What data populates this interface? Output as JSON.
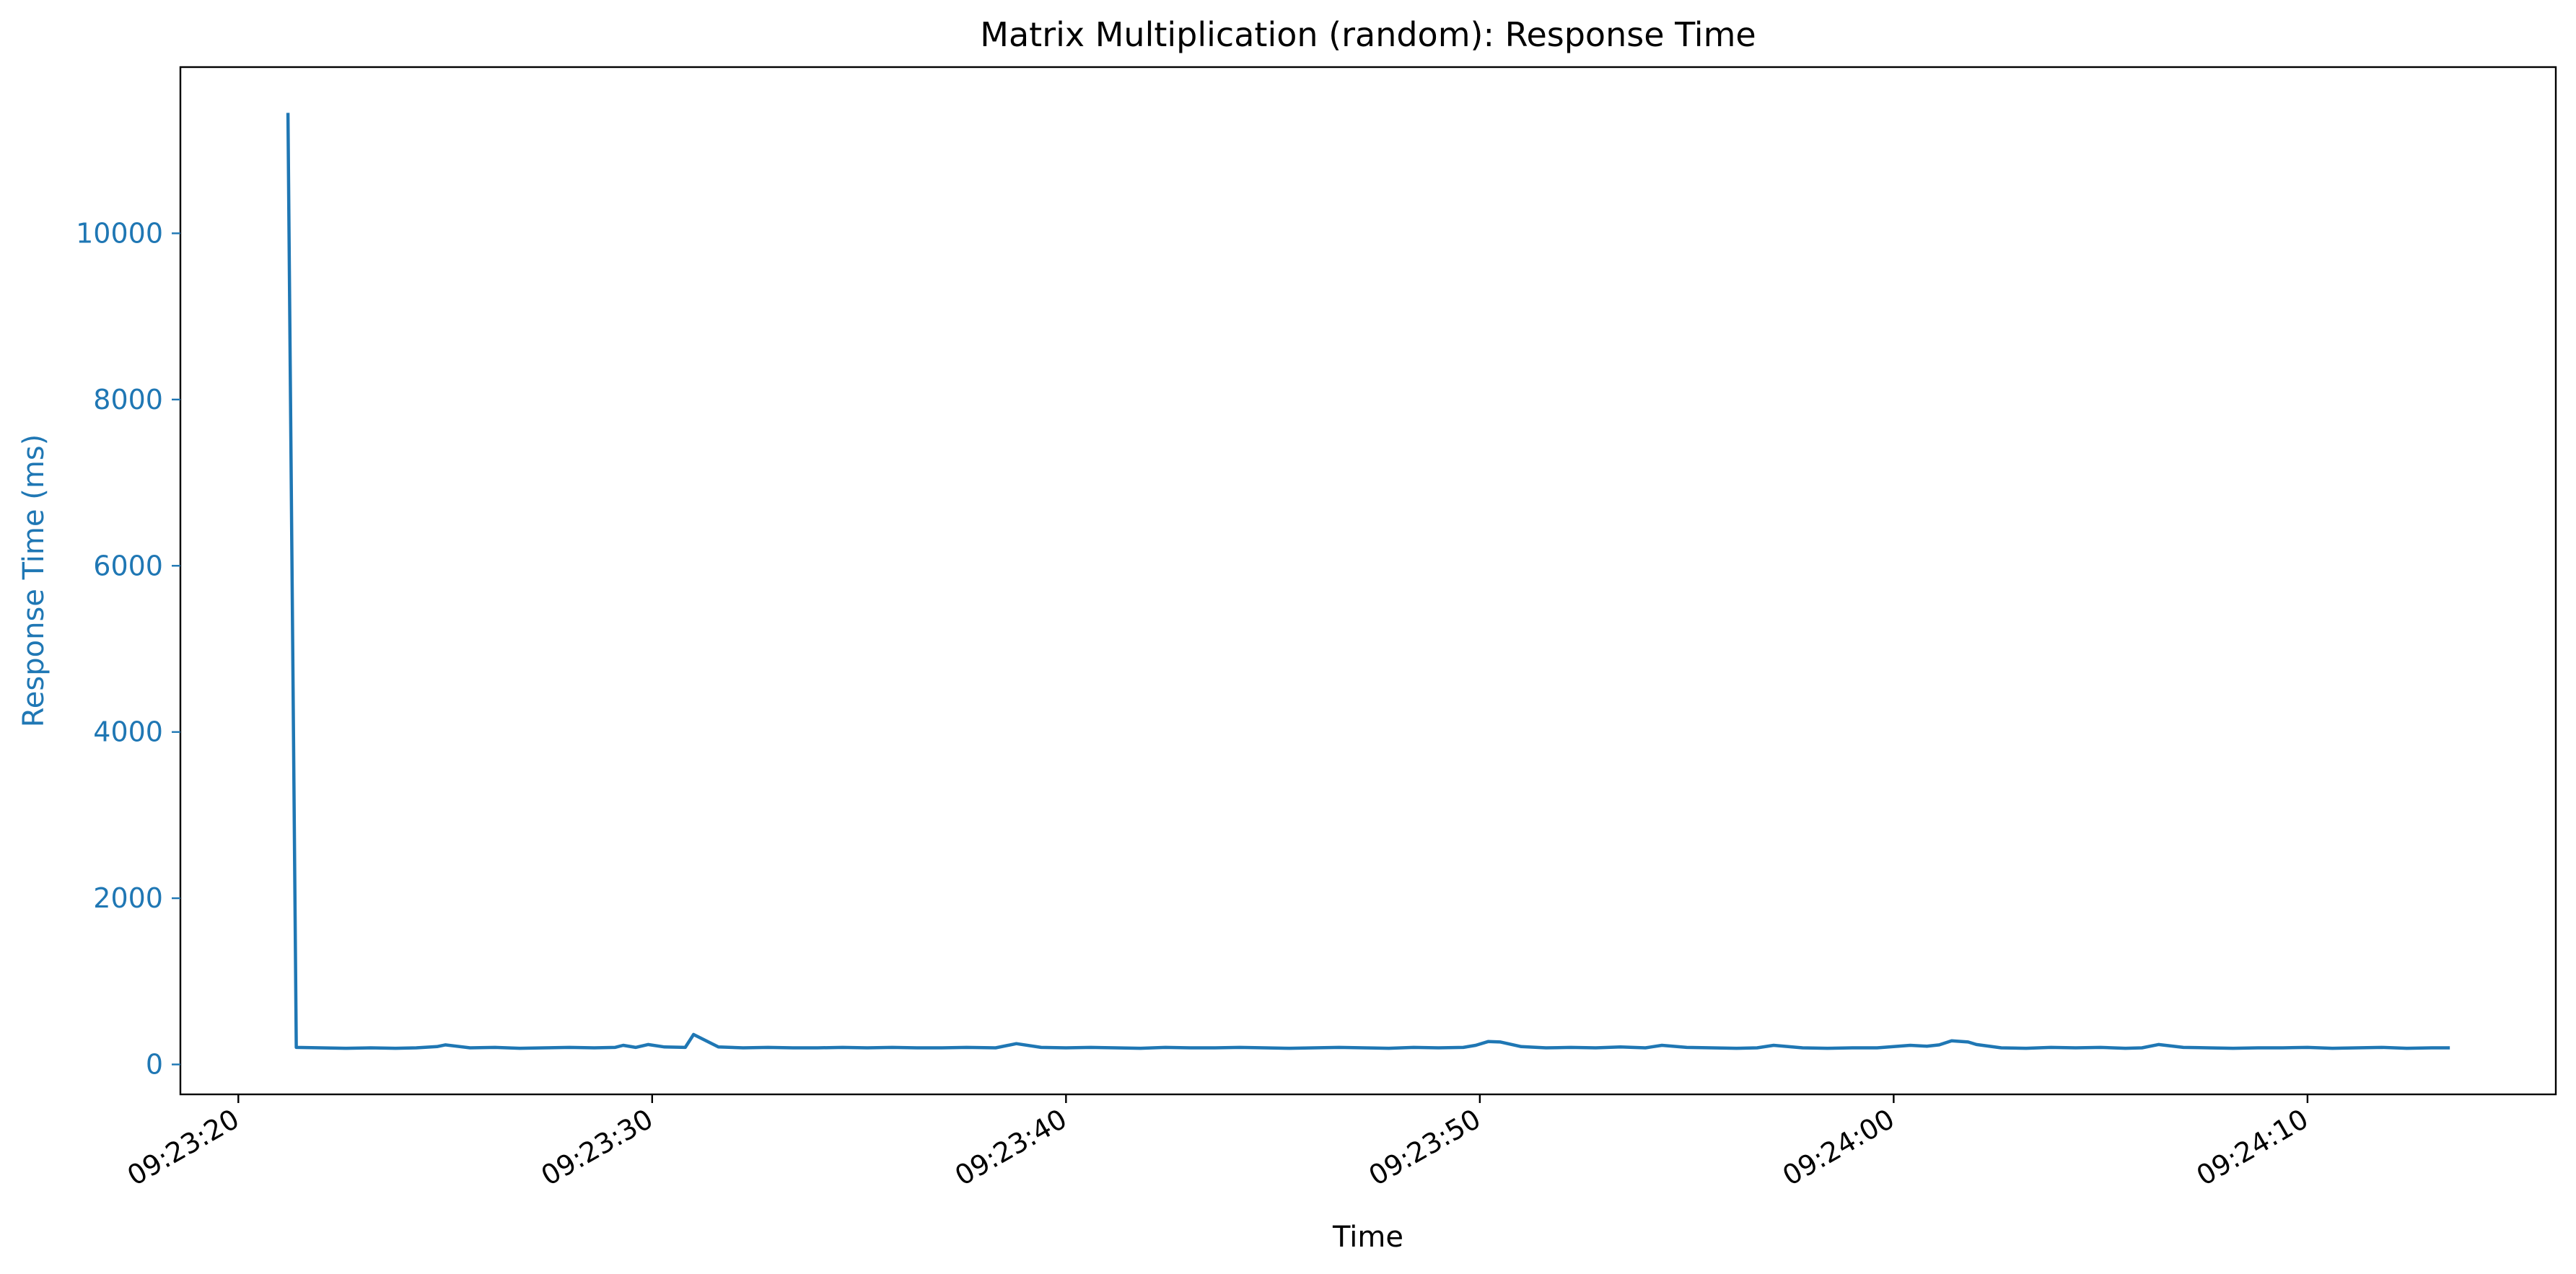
{
  "chart_data": {
    "type": "line",
    "title": "Matrix Multiplication (random): Response Time",
    "xlabel": "Time",
    "ylabel": "Response Time (ms)",
    "x_ticks": [
      "09:23:20",
      "09:23:30",
      "09:23:40",
      "09:23:50",
      "09:24:00",
      "09:24:10"
    ],
    "y_ticks": [
      0,
      2000,
      4000,
      6000,
      8000,
      10000
    ],
    "xlim": [
      "09:23:18.6",
      "09:24:16.0"
    ],
    "ylim": [
      -360,
      12000
    ],
    "grid": false,
    "colors": {
      "series": "#1f77b4",
      "ylabel": "#1f77b4",
      "axis": "#000000"
    },
    "series": [
      {
        "name": "",
        "x": [
          "09:23:21.2",
          "09:23:21.4",
          "09:23:22.0",
          "09:23:22.6",
          "09:23:23.2",
          "09:23:23.8",
          "09:23:24.3",
          "09:23:24.8",
          "09:23:25.0",
          "09:23:25.6",
          "09:23:26.2",
          "09:23:26.8",
          "09:23:27.4",
          "09:23:28.0",
          "09:23:28.6",
          "09:23:29.1",
          "09:23:29.3",
          "09:23:29.6",
          "09:23:29.9",
          "09:23:30.3",
          "09:23:30.8",
          "09:23:31.0",
          "09:23:31.6",
          "09:23:32.2",
          "09:23:32.8",
          "09:23:33.4",
          "09:23:34.0",
          "09:23:34.6",
          "09:23:35.2",
          "09:23:35.8",
          "09:23:36.4",
          "09:23:37.0",
          "09:23:37.6",
          "09:23:38.3",
          "09:23:38.8",
          "09:23:39.4",
          "09:23:40.0",
          "09:23:40.6",
          "09:23:41.2",
          "09:23:41.8",
          "09:23:42.4",
          "09:23:43.0",
          "09:23:43.6",
          "09:23:44.2",
          "09:23:44.8",
          "09:23:45.4",
          "09:23:46.0",
          "09:23:46.6",
          "09:23:47.2",
          "09:23:47.8",
          "09:23:48.4",
          "09:23:49.0",
          "09:23:49.6",
          "09:23:49.9",
          "09:23:50.2",
          "09:23:50.5",
          "09:23:51.0",
          "09:23:51.6",
          "09:23:52.2",
          "09:23:52.8",
          "09:23:53.4",
          "09:23:54.0",
          "09:23:54.4",
          "09:23:55.0",
          "09:23:55.6",
          "09:23:56.2",
          "09:23:56.7",
          "09:23:57.1",
          "09:23:57.8",
          "09:23:58.4",
          "09:23:59.0",
          "09:23:59.6",
          "09:24:00.0",
          "09:24:00.4",
          "09:24:00.8",
          "09:24:01.1",
          "09:24:01.4",
          "09:24:01.8",
          "09:24:02.0",
          "09:24:02.6",
          "09:24:03.2",
          "09:24:03.8",
          "09:24:04.4",
          "09:24:05.0",
          "09:24:05.6",
          "09:24:06.0",
          "09:24:06.4",
          "09:24:07.0",
          "09:24:07.6",
          "09:24:08.2",
          "09:24:08.8",
          "09:24:09.4",
          "09:24:10.0",
          "09:24:10.6",
          "09:24:11.2",
          "09:24:11.8",
          "09:24:12.4",
          "09:24:13.0",
          "09:24:13.4"
        ],
        "values": [
          11430,
          205,
          200,
          195,
          200,
          195,
          200,
          215,
          235,
          200,
          205,
          195,
          200,
          205,
          200,
          205,
          230,
          205,
          240,
          210,
          205,
          360,
          210,
          200,
          205,
          200,
          200,
          205,
          200,
          205,
          200,
          200,
          205,
          200,
          250,
          205,
          200,
          205,
          200,
          195,
          205,
          200,
          200,
          205,
          200,
          195,
          200,
          205,
          200,
          195,
          205,
          200,
          205,
          230,
          275,
          270,
          215,
          200,
          205,
          200,
          210,
          200,
          230,
          205,
          200,
          195,
          200,
          230,
          200,
          195,
          200,
          200,
          215,
          230,
          220,
          235,
          285,
          270,
          240,
          200,
          195,
          205,
          200,
          205,
          195,
          200,
          240,
          205,
          200,
          195,
          200,
          200,
          205,
          195,
          200,
          205,
          195,
          200,
          200
        ]
      }
    ]
  }
}
